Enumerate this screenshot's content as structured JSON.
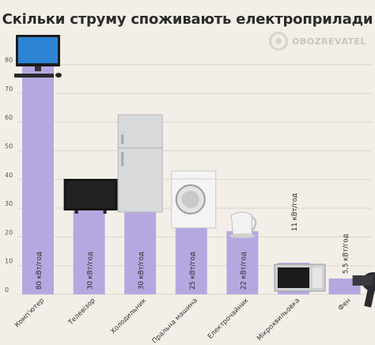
{
  "title": "Скільки струму споживають електроприлади",
  "logo_text": "OBOZREVATEL",
  "colors": {
    "bar": "#b5a8e0",
    "grid": "#d9d5cf",
    "text": "#333333",
    "background": "#f3efe8"
  },
  "chart_data": {
    "type": "bar",
    "title": "Скільки струму споживають електроприлади",
    "categories": [
      "Комп'ютер",
      "Телевізор",
      "Холодильник",
      "Пральна машина",
      "Електрочайник",
      "Мікрохвильовка",
      "Фен"
    ],
    "values": [
      80,
      30,
      30,
      25,
      22,
      11,
      5.5
    ],
    "data_labels": [
      "80 кВт/год",
      "30 кВт/год",
      "30 кВт/год",
      "25 кВт/год",
      "22 кВт/год",
      "11 кВт/год",
      "5,5 кВт/год"
    ],
    "icons": [
      "computer-icon",
      "tv-icon",
      "fridge-icon",
      "washing-machine-icon",
      "kettle-icon",
      "microwave-icon",
      "hair-dryer-icon"
    ],
    "yticks": [
      0,
      10,
      20,
      30,
      40,
      50,
      60,
      70,
      80
    ],
    "ylim": [
      0,
      90
    ],
    "grid": true,
    "xlabel": "",
    "ylabel": ""
  }
}
